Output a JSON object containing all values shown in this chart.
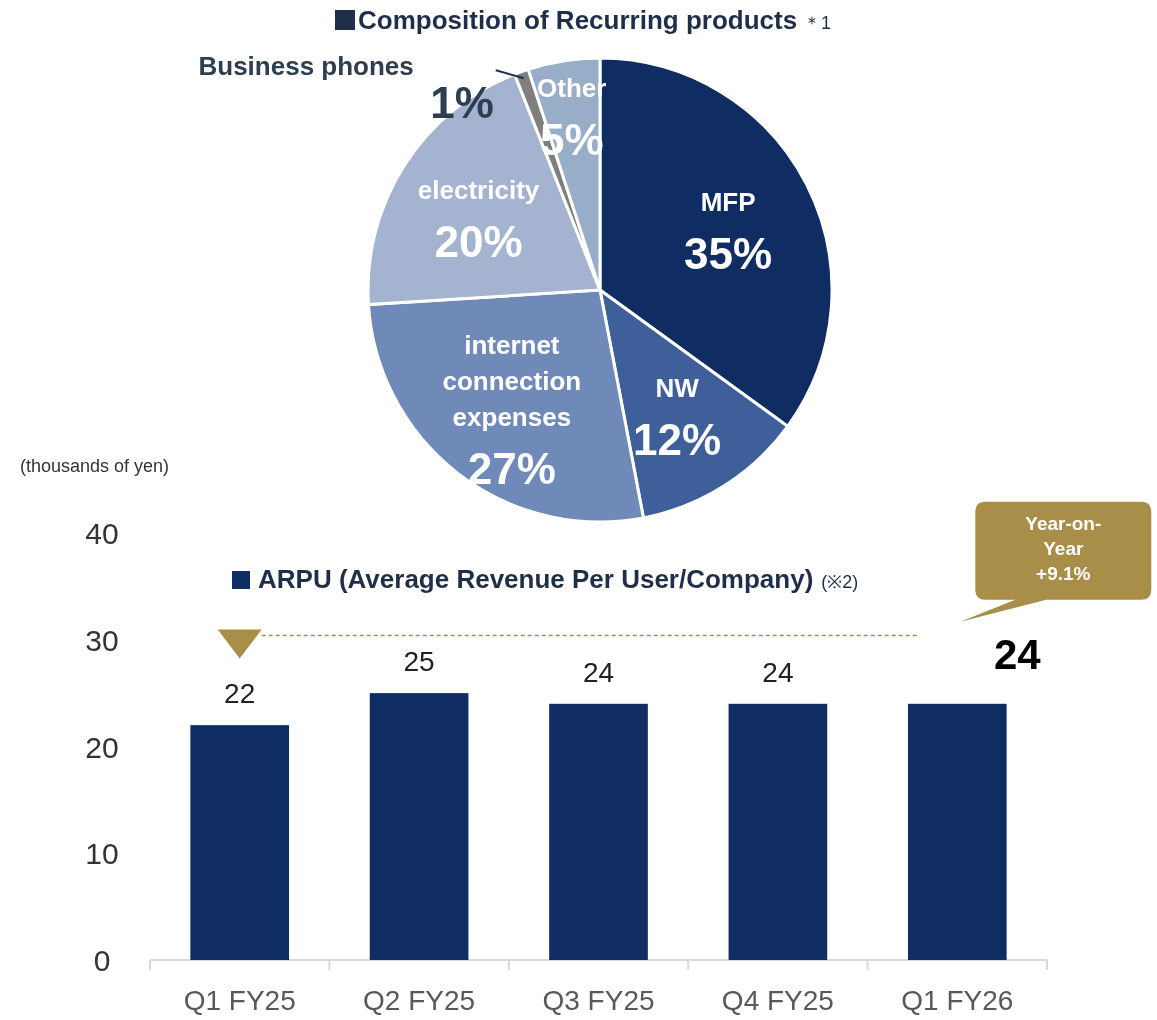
{
  "chart_data": [
    {
      "type": "pie",
      "title": "Composition of Recurring products",
      "annotations": [
        "＊1"
      ],
      "categories": [
        "MFP",
        "NW",
        "internet connection expenses",
        "electricity",
        "Business phones",
        "Other"
      ],
      "values": [
        35,
        12,
        27,
        20,
        1,
        5
      ],
      "colors": [
        "#0f2d62",
        "#3f5f9a",
        "#6f8ab8",
        "#a3b3d0",
        "#7f7f7f",
        "#97adc8"
      ],
      "value_labels": [
        "35%",
        "12%",
        "27%",
        "20%",
        "1%",
        "5%"
      ]
    },
    {
      "type": "bar",
      "title": "ARPU (Average Revenue Per User/Company)",
      "ylabel": "(thousands of yen)",
      "annotations": [
        "(※2)",
        "Year-on-Year +9.1%"
      ],
      "categories": [
        "Q1 FY25",
        "Q2 FY25",
        "Q3 FY25",
        "Q4 FY25",
        "Q1 FY26"
      ],
      "values": [
        22,
        25,
        24,
        24,
        24
      ],
      "color": "#102d62",
      "ylim": [
        0,
        40
      ],
      "yticks": [
        0,
        10,
        20,
        30,
        40
      ],
      "data_labels": true,
      "ref_lines": [
        {
          "axis": "y",
          "value": 30.4,
          "color": "#a98e4a",
          "line_style": "dashed"
        }
      ]
    }
  ]
}
